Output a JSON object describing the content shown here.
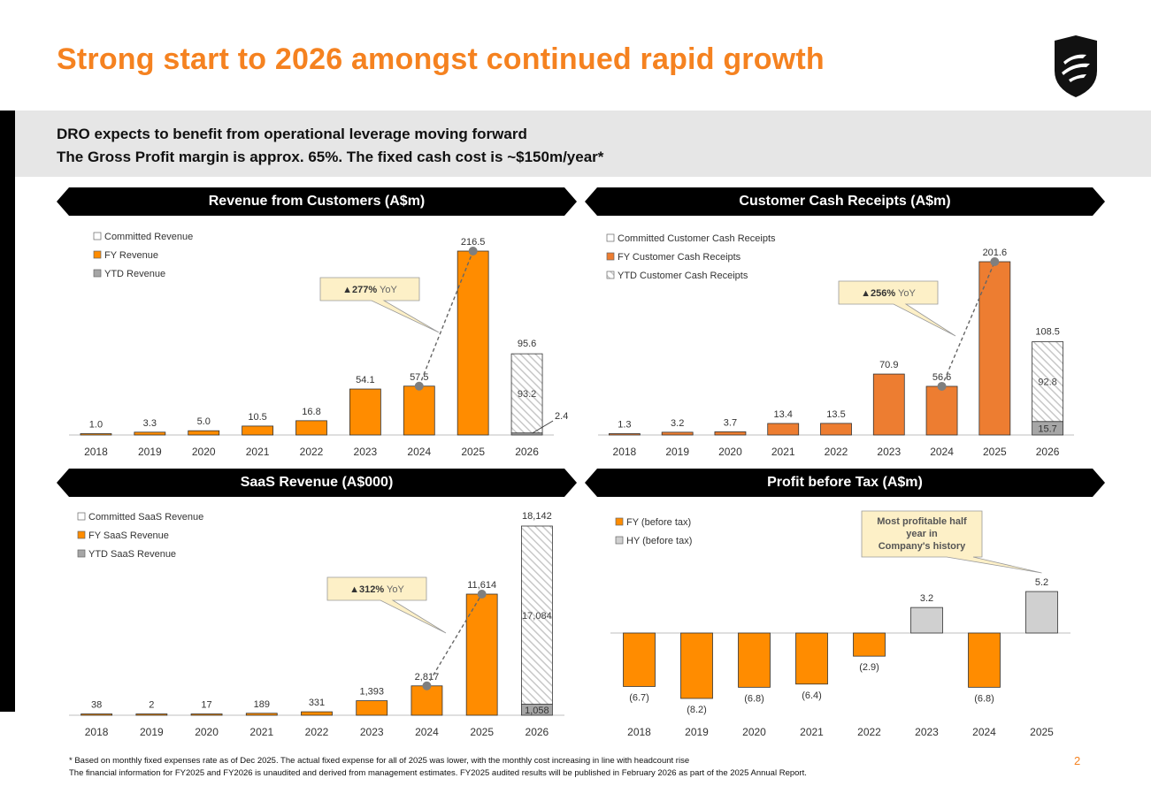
{
  "title": "Strong start to 2026 amongst continued rapid growth",
  "subtitle_line1": "DRO expects to benefit from operational leverage moving forward",
  "subtitle_line2": "The Gross Profit margin is approx. 65%. The fixed cash cost is ~$150m/year*",
  "footnote1": "* Based on monthly fixed expenses rate as of Dec 2025. The actual fixed expense for all of 2025 was lower, with the monthly cost increasing in line with headcount rise",
  "footnote2": "The financial information for FY2025 and FY2026 is unaudited and derived from management estimates. FY2025 audited results will be published in February 2026 as part of the 2025 Annual Report.",
  "page_number": "2",
  "colors": {
    "accent": "#f58220",
    "bar_orange": "#ff8c00",
    "bar_orange2": "#ed7d31",
    "ytd_grey": "#a6a6a6",
    "hy_grey": "#d0d0d0",
    "banner": "#000000",
    "callout_fill": "#fdf0c7"
  },
  "icons": {
    "logo": "shield-logo-icon",
    "arrow_up": "triangle-up-icon"
  },
  "chart_data": [
    {
      "id": "revenue",
      "type": "bar",
      "title": "Revenue from Customers (A$m)",
      "legend": [
        "Committed Revenue",
        "FY Revenue",
        "YTD Revenue"
      ],
      "categories": [
        "2018",
        "2019",
        "2020",
        "2021",
        "2022",
        "2023",
        "2024",
        "2025",
        "2026"
      ],
      "values": [
        1.0,
        3.3,
        5.0,
        10.5,
        16.8,
        54.1,
        57.5,
        216.5,
        null
      ],
      "labels": [
        "1.0",
        "3.3",
        "5.0",
        "10.5",
        "16.8",
        "54.1",
        "57.5",
        "216.5",
        "95.6"
      ],
      "stacked_2026": {
        "ytd": 2.4,
        "committed": 93.2,
        "total": 95.6,
        "ytd_label": "2.4",
        "committed_label": "93.2"
      },
      "ylim": [
        0,
        216.5
      ],
      "callout": {
        "arrow": "▲",
        "pct": "277%",
        "suffix": " YoY"
      }
    },
    {
      "id": "cash",
      "type": "bar",
      "title": "Customer Cash Receipts (A$m)",
      "legend": [
        "Committed Customer Cash Receipts",
        "FY Customer Cash Receipts",
        "YTD Customer Cash Receipts"
      ],
      "categories": [
        "2018",
        "2019",
        "2020",
        "2021",
        "2022",
        "2023",
        "2024",
        "2025",
        "2026"
      ],
      "values": [
        1.3,
        3.2,
        3.7,
        13.4,
        13.5,
        70.9,
        56.6,
        201.6,
        null
      ],
      "labels": [
        "1.3",
        "3.2",
        "3.7",
        "13.4",
        "13.5",
        "70.9",
        "56.6",
        "201.6",
        "108.5"
      ],
      "stacked_2026": {
        "ytd": 15.7,
        "committed": 92.8,
        "total": 108.5,
        "ytd_label": "15.7",
        "committed_label": "92.8"
      },
      "ylim": [
        0,
        201.6
      ],
      "callout": {
        "arrow": "▲",
        "pct": "256%",
        "suffix": " YoY"
      }
    },
    {
      "id": "saas",
      "type": "bar",
      "title": "SaaS Revenue (A$000)",
      "legend": [
        "Committed SaaS Revenue",
        "FY SaaS Revenue",
        "YTD SaaS Revenue"
      ],
      "categories": [
        "2018",
        "2019",
        "2020",
        "2021",
        "2022",
        "2023",
        "2024",
        "2025",
        "2026"
      ],
      "values": [
        38,
        2,
        17,
        189,
        331,
        1393,
        2817,
        11614,
        null
      ],
      "labels": [
        "38",
        "2",
        "17",
        "189",
        "331",
        "1,393",
        "2,817",
        "11,614",
        "18,142"
      ],
      "stacked_2026": {
        "ytd": 1058,
        "committed": 17084,
        "total": 18142,
        "ytd_label": "1,058",
        "committed_label": "17,084"
      },
      "ylim": [
        0,
        18142
      ],
      "callout": {
        "arrow": "▲",
        "pct": "312%",
        "suffix": " YoY"
      }
    },
    {
      "id": "pbt",
      "type": "bar",
      "title": "Profit before Tax (A$m)",
      "legend": [
        "FY (before tax)",
        "HY (before tax)"
      ],
      "categories": [
        "2018",
        "2019",
        "2020",
        "2021",
        "2022",
        "2023",
        "2024",
        "2025"
      ],
      "bars": [
        {
          "value": -6.7,
          "label": "(6.7)",
          "kind": "FY"
        },
        {
          "value": -8.2,
          "label": "(8.2)",
          "kind": "FY"
        },
        {
          "value": -6.8,
          "label": "(6.8)",
          "kind": "FY"
        },
        {
          "value": -6.4,
          "label": "(6.4)",
          "kind": "FY"
        },
        {
          "value": -2.9,
          "label": "(2.9)",
          "kind": "FY"
        },
        {
          "value": 3.2,
          "label": "3.2",
          "kind": "HY"
        },
        {
          "value": -6.8,
          "label": "(6.8)",
          "kind": "FY"
        },
        {
          "value": 5.2,
          "label": "5.2",
          "kind": "HY"
        }
      ],
      "bar_slots": [
        0,
        1,
        2,
        3,
        4,
        5,
        6,
        7
      ],
      "ylim": [
        -8.2,
        5.2
      ],
      "callout": {
        "text": "Most profitable half year in Company's history"
      }
    }
  ]
}
